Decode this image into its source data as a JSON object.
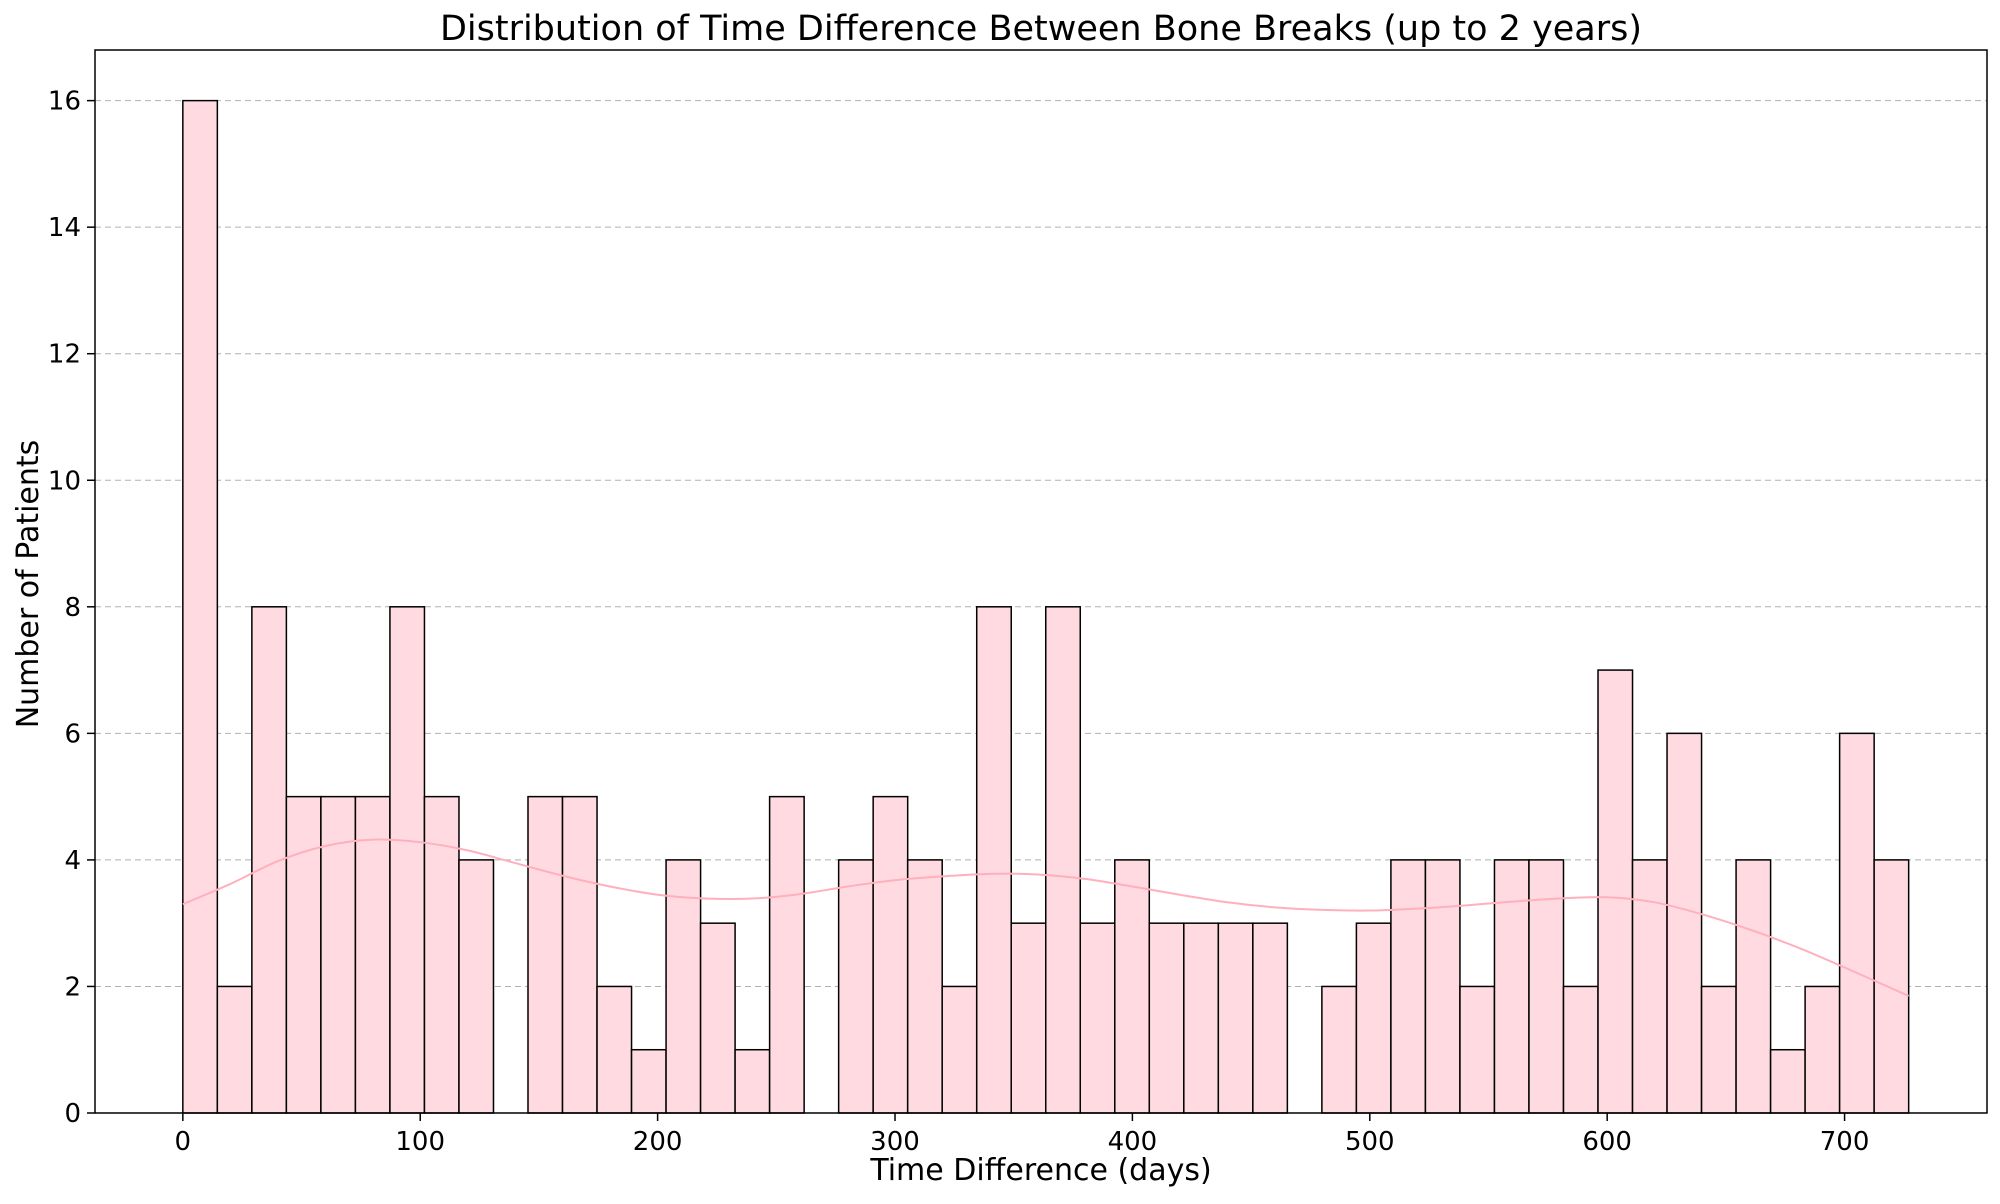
{
  "chart_data": {
    "type": "bar",
    "title": "Distribution of Time Difference Between Bone Breaks (up to 2 years)",
    "xlabel": "Time Difference (days)",
    "ylabel": "Number of Patients",
    "xlim": [
      -37,
      760
    ],
    "ylim": [
      0,
      16.8
    ],
    "x_ticks": [
      0,
      100,
      200,
      300,
      400,
      500,
      600,
      700
    ],
    "y_ticks": [
      0,
      2,
      4,
      6,
      8,
      10,
      12,
      14,
      16
    ],
    "grid": "y-dashed",
    "bar_color": "#ffdbe1",
    "edge_color": "#000000",
    "kde_color": "#ffb0bd",
    "bins": [
      [
        0,
        14.54
      ],
      [
        14.54,
        29.08
      ],
      [
        29.08,
        43.62
      ],
      [
        43.62,
        58.16
      ],
      [
        58.16,
        72.7
      ],
      [
        72.7,
        87.24
      ],
      [
        87.24,
        101.78
      ],
      [
        101.78,
        116.32
      ],
      [
        116.32,
        130.86
      ],
      [
        130.86,
        145.4
      ],
      [
        145.4,
        159.94
      ],
      [
        159.94,
        174.48
      ],
      [
        174.48,
        189.02
      ],
      [
        189.02,
        203.56
      ],
      [
        203.56,
        218.1
      ],
      [
        218.1,
        232.64
      ],
      [
        232.64,
        247.18
      ],
      [
        247.18,
        261.72
      ],
      [
        261.72,
        276.26
      ],
      [
        276.26,
        290.8
      ],
      [
        290.8,
        305.34
      ],
      [
        305.34,
        319.88
      ],
      [
        319.88,
        334.42
      ],
      [
        334.42,
        348.96
      ],
      [
        348.96,
        363.5
      ],
      [
        363.5,
        378.04
      ],
      [
        378.04,
        392.58
      ],
      [
        392.58,
        407.12
      ],
      [
        407.12,
        421.66
      ],
      [
        421.66,
        436.2
      ],
      [
        436.2,
        450.74
      ],
      [
        450.74,
        465.28
      ],
      [
        465.28,
        479.82
      ],
      [
        479.82,
        494.36
      ],
      [
        494.36,
        508.9
      ],
      [
        508.9,
        523.44
      ],
      [
        523.44,
        537.98
      ],
      [
        537.98,
        552.52
      ],
      [
        552.52,
        567.06
      ],
      [
        567.06,
        581.6
      ],
      [
        581.6,
        596.14
      ],
      [
        596.14,
        610.68
      ],
      [
        610.68,
        625.22
      ],
      [
        625.22,
        639.76
      ],
      [
        639.76,
        654.3
      ],
      [
        654.3,
        668.84
      ],
      [
        668.84,
        683.38
      ],
      [
        683.38,
        697.92
      ],
      [
        697.92,
        712.46
      ],
      [
        712.46,
        727
      ]
    ],
    "values": [
      16,
      2,
      8,
      5,
      5,
      5,
      8,
      5,
      4,
      0,
      5,
      5,
      2,
      1,
      4,
      3,
      1,
      5,
      0,
      4,
      5,
      4,
      2,
      8,
      3,
      8,
      3,
      4,
      3,
      3,
      3,
      3,
      0,
      2,
      3,
      4,
      4,
      2,
      4,
      4,
      2,
      7,
      4,
      6,
      2,
      4,
      1,
      2,
      6,
      4
    ],
    "kde_curve": {
      "x": [
        0,
        20,
        40,
        60,
        80,
        100,
        120,
        140,
        160,
        180,
        200,
        220,
        240,
        260,
        280,
        300,
        320,
        340,
        360,
        380,
        400,
        420,
        440,
        460,
        480,
        500,
        520,
        540,
        560,
        580,
        600,
        620,
        640,
        660,
        680,
        700,
        727
      ],
      "y": [
        3.3,
        3.62,
        3.98,
        4.22,
        4.32,
        4.28,
        4.15,
        3.95,
        3.75,
        3.58,
        3.45,
        3.39,
        3.39,
        3.46,
        3.58,
        3.68,
        3.74,
        3.78,
        3.77,
        3.7,
        3.58,
        3.45,
        3.33,
        3.25,
        3.21,
        3.2,
        3.23,
        3.28,
        3.34,
        3.39,
        3.41,
        3.33,
        3.14,
        2.9,
        2.62,
        2.3,
        1.85
      ]
    }
  }
}
